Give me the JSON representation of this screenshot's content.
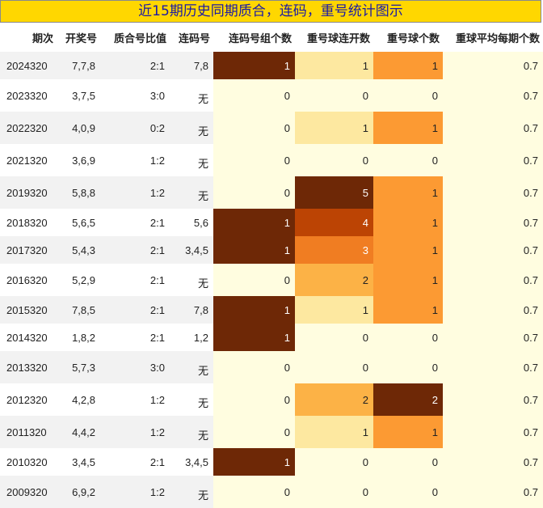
{
  "title": "近15期历史同期质合，连码，重号统计图示",
  "headers": [
    "期次",
    "开奖号",
    "质合号比值",
    "连码号",
    "连码号组个数",
    "重号球连开数",
    "重号球个数",
    "重球平均每期个数"
  ],
  "rows": [
    {
      "period": "2024320",
      "numbers": "7,7,8",
      "ratio": "2:1",
      "consec": "7,8",
      "consec_groups": "1",
      "repeat_streak": "1",
      "repeat_count": "1",
      "avg": "0.7"
    },
    {
      "period": "2023320",
      "numbers": "3,7,5",
      "ratio": "3:0",
      "consec": "无",
      "consec_groups": "0",
      "repeat_streak": "0",
      "repeat_count": "0",
      "avg": "0.7"
    },
    {
      "period": "2022320",
      "numbers": "4,0,9",
      "ratio": "0:2",
      "consec": "无",
      "consec_groups": "0",
      "repeat_streak": "1",
      "repeat_count": "1",
      "avg": "0.7"
    },
    {
      "period": "2021320",
      "numbers": "3,6,9",
      "ratio": "1:2",
      "consec": "无",
      "consec_groups": "0",
      "repeat_streak": "0",
      "repeat_count": "0",
      "avg": "0.7"
    },
    {
      "period": "2019320",
      "numbers": "5,8,8",
      "ratio": "1:2",
      "consec": "无",
      "consec_groups": "0",
      "repeat_streak": "5",
      "repeat_count": "1",
      "avg": "0.7"
    },
    {
      "period": "2018320",
      "numbers": "5,6,5",
      "ratio": "2:1",
      "consec": "5,6",
      "consec_groups": "1",
      "repeat_streak": "4",
      "repeat_count": "1",
      "avg": "0.7"
    },
    {
      "period": "2017320",
      "numbers": "5,4,3",
      "ratio": "2:1",
      "consec": "3,4,5",
      "consec_groups": "1",
      "repeat_streak": "3",
      "repeat_count": "1",
      "avg": "0.7"
    },
    {
      "period": "2016320",
      "numbers": "5,2,9",
      "ratio": "2:1",
      "consec": "无",
      "consec_groups": "0",
      "repeat_streak": "2",
      "repeat_count": "1",
      "avg": "0.7"
    },
    {
      "period": "2015320",
      "numbers": "7,8,5",
      "ratio": "2:1",
      "consec": "7,8",
      "consec_groups": "1",
      "repeat_streak": "1",
      "repeat_count": "1",
      "avg": "0.7"
    },
    {
      "period": "2014320",
      "numbers": "1,8,2",
      "ratio": "2:1",
      "consec": "1,2",
      "consec_groups": "1",
      "repeat_streak": "0",
      "repeat_count": "0",
      "avg": "0.7"
    },
    {
      "period": "2013320",
      "numbers": "5,7,3",
      "ratio": "3:0",
      "consec": "无",
      "consec_groups": "0",
      "repeat_streak": "0",
      "repeat_count": "0",
      "avg": "0.7"
    },
    {
      "period": "2012320",
      "numbers": "4,2,8",
      "ratio": "1:2",
      "consec": "无",
      "consec_groups": "0",
      "repeat_streak": "2",
      "repeat_count": "2",
      "avg": "0.7"
    },
    {
      "period": "2011320",
      "numbers": "4,4,2",
      "ratio": "1:2",
      "consec": "无",
      "consec_groups": "0",
      "repeat_streak": "1",
      "repeat_count": "1",
      "avg": "0.7"
    },
    {
      "period": "2010320",
      "numbers": "3,4,5",
      "ratio": "2:1",
      "consec": "3,4,5",
      "consec_groups": "1",
      "repeat_streak": "0",
      "repeat_count": "0",
      "avg": "0.7"
    },
    {
      "period": "2009320",
      "numbers": "6,9,2",
      "ratio": "1:2",
      "consec": "无",
      "consec_groups": "0",
      "repeat_streak": "0",
      "repeat_count": "0",
      "avg": "0.7"
    }
  ],
  "colors": {
    "title_bg": "#ffd700",
    "title_text": "#1a1aa6",
    "base_cell": "#fffde0",
    "heat_0": "#fffde0",
    "heat_1": "#fde8a0",
    "heat_2": "#fcb246",
    "heat_3": "#f07d22",
    "heat_4": "#bc4404",
    "heat_5": "#6e2806",
    "consec_hit": "#6e2806",
    "repeat_1": "#fc9a33",
    "repeat_2": "#6e2806"
  }
}
